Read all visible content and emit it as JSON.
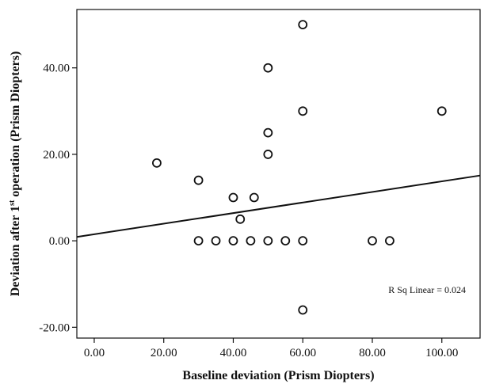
{
  "chart_data": {
    "type": "scatter",
    "xlabel": "Baseline deviation (Prism Diopters)",
    "ylabel_parts": [
      "Deviation after 1",
      "st",
      " operation (Prism Diopters)"
    ],
    "xlim": [
      -5,
      111
    ],
    "ylim": [
      -22.5,
      53.5
    ],
    "x_ticks": [
      0,
      20,
      40,
      60,
      80,
      100
    ],
    "x_tick_labels": [
      "0.00",
      "20.00",
      "40.00",
      "60.00",
      "80.00",
      "100.00"
    ],
    "y_ticks": [
      -20,
      0,
      20,
      40
    ],
    "y_tick_labels": [
      "-20.00",
      "0.00",
      "20.00",
      "40.00"
    ],
    "points": [
      {
        "x": 18,
        "y": 18
      },
      {
        "x": 30,
        "y": 14
      },
      {
        "x": 30,
        "y": 0
      },
      {
        "x": 35,
        "y": 0
      },
      {
        "x": 40,
        "y": 10
      },
      {
        "x": 40,
        "y": 0
      },
      {
        "x": 42,
        "y": 5
      },
      {
        "x": 45,
        "y": 0
      },
      {
        "x": 46,
        "y": 10
      },
      {
        "x": 50,
        "y": 40
      },
      {
        "x": 50,
        "y": 25
      },
      {
        "x": 50,
        "y": 20
      },
      {
        "x": 50,
        "y": 0
      },
      {
        "x": 55,
        "y": 0
      },
      {
        "x": 60,
        "y": 50
      },
      {
        "x": 60,
        "y": 30
      },
      {
        "x": 60,
        "y": 0
      },
      {
        "x": 60,
        "y": -16
      },
      {
        "x": 80,
        "y": 0
      },
      {
        "x": 85,
        "y": 0
      },
      {
        "x": 100,
        "y": 30
      }
    ],
    "fit_line": {
      "x": [
        -5,
        111
      ],
      "y": [
        0.9,
        15.1
      ]
    },
    "annotation": "R Sq Linear = 0.024",
    "grid": false,
    "colors": {
      "marker": "#111111",
      "line": "#111111",
      "background": "#ffffff"
    }
  }
}
